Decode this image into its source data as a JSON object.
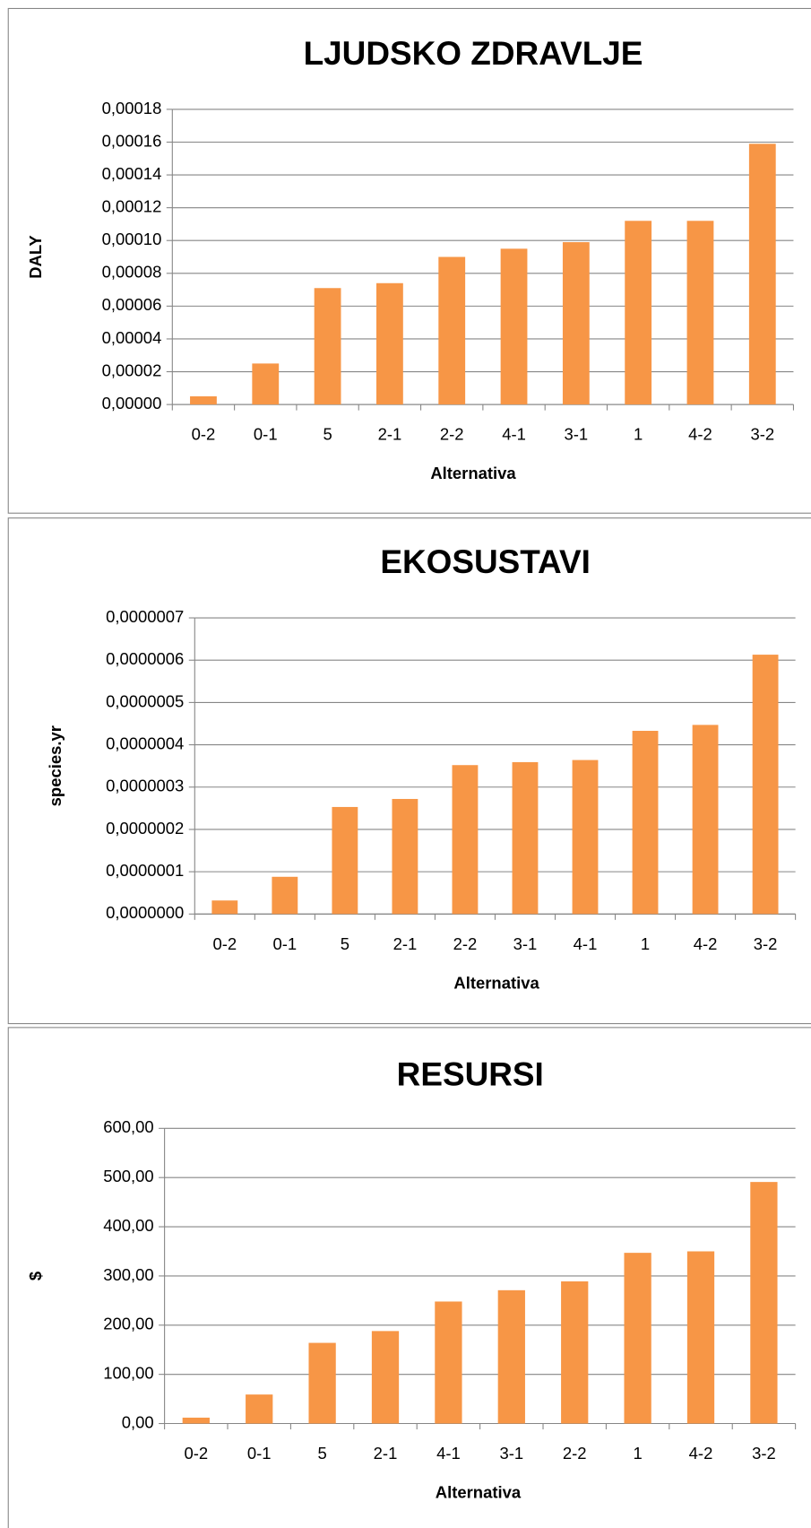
{
  "chart_data": [
    {
      "type": "bar",
      "title": "LJUDSKO ZDRAVLJE",
      "xlabel": "Alternativa",
      "ylabel": "DALY",
      "categories": [
        "0-2",
        "0-1",
        "5",
        "2-1",
        "2-2",
        "4-1",
        "3-1",
        "1",
        "4-2",
        "3-2"
      ],
      "values": [
        5e-06,
        2.5e-05,
        7.1e-05,
        7.4e-05,
        9e-05,
        9.5e-05,
        9.9e-05,
        0.000112,
        0.000112,
        0.000159
      ],
      "color": "#f79646",
      "ylim": [
        0,
        0.00018
      ],
      "yticks": [
        {
          "value": 0,
          "label": "0,00000"
        },
        {
          "value": 2e-05,
          "label": "0,00002"
        },
        {
          "value": 4e-05,
          "label": "0,00004"
        },
        {
          "value": 6e-05,
          "label": "0,00006"
        },
        {
          "value": 8e-05,
          "label": "0,00008"
        },
        {
          "value": 0.0001,
          "label": "0,00010"
        },
        {
          "value": 0.00012,
          "label": "0,00012"
        },
        {
          "value": 0.00014,
          "label": "0,00014"
        },
        {
          "value": 0.00016,
          "label": "0,00016"
        },
        {
          "value": 0.00018,
          "label": "0,00018"
        }
      ],
      "grid": true
    },
    {
      "type": "bar",
      "title": "EKOSUSTAVI",
      "xlabel": "Alternativa",
      "ylabel": "species.yr",
      "categories": [
        "0-2",
        "0-1",
        "5",
        "2-1",
        "2-2",
        "3-1",
        "4-1",
        "1",
        "4-2",
        "3-2"
      ],
      "values": [
        3.2e-08,
        8.8e-08,
        2.53e-07,
        2.72e-07,
        3.52e-07,
        3.59e-07,
        3.64e-07,
        4.33e-07,
        4.47e-07,
        6.13e-07
      ],
      "color": "#f79646",
      "ylim": [
        0,
        7e-07
      ],
      "yticks": [
        {
          "value": 0,
          "label": "0,0000000"
        },
        {
          "value": 1e-07,
          "label": "0,0000001"
        },
        {
          "value": 2e-07,
          "label": "0,0000002"
        },
        {
          "value": 3e-07,
          "label": "0,0000003"
        },
        {
          "value": 4e-07,
          "label": "0,0000004"
        },
        {
          "value": 5e-07,
          "label": "0,0000005"
        },
        {
          "value": 6e-07,
          "label": "0,0000006"
        },
        {
          "value": 7e-07,
          "label": "0,0000007"
        }
      ],
      "grid": true
    },
    {
      "type": "bar",
      "title": "RESURSI",
      "xlabel": "Alternativa",
      "ylabel": "$",
      "categories": [
        "0-2",
        "0-1",
        "5",
        "2-1",
        "4-1",
        "3-1",
        "2-2",
        "1",
        "4-2",
        "3-2"
      ],
      "values": [
        12,
        59,
        164,
        188,
        248,
        271,
        289,
        347,
        350,
        491
      ],
      "color": "#f79646",
      "ylim": [
        0,
        600
      ],
      "yticks": [
        {
          "value": 0,
          "label": "0,00"
        },
        {
          "value": 100,
          "label": "100,00"
        },
        {
          "value": 200,
          "label": "200,00"
        },
        {
          "value": 300,
          "label": "300,00"
        },
        {
          "value": 400,
          "label": "400,00"
        },
        {
          "value": 500,
          "label": "500,00"
        },
        {
          "value": 600,
          "label": "600,00"
        }
      ],
      "grid": true
    }
  ]
}
